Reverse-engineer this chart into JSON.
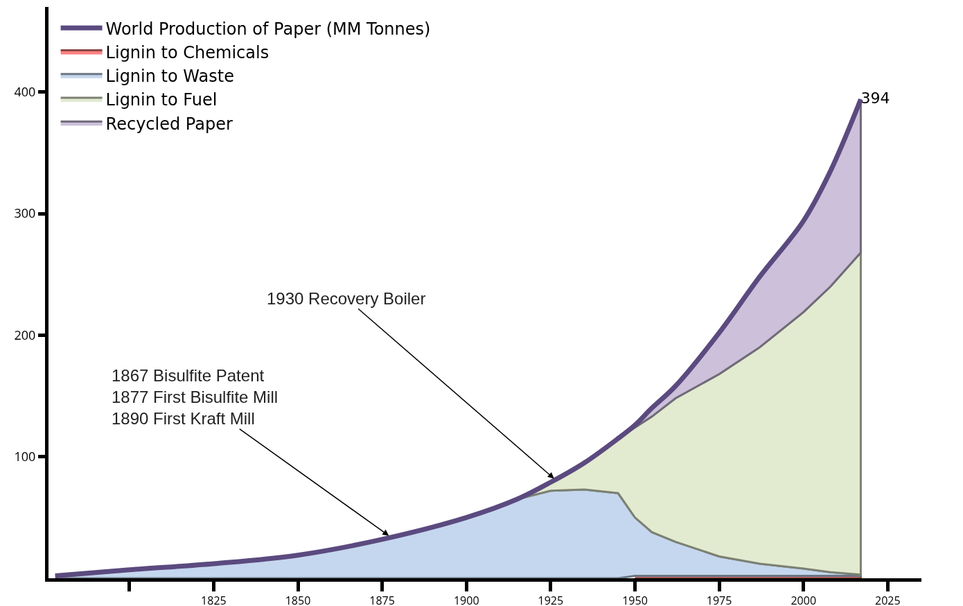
{
  "chart_data": {
    "type": "area",
    "stacked": true,
    "x": [
      1778,
      1800,
      1825,
      1850,
      1875,
      1900,
      1915,
      1925,
      1935,
      1945,
      1950,
      1955,
      1962,
      1975,
      1987,
      2000,
      2008,
      2017
    ],
    "series": [
      {
        "name": "Lignin to Chemicals",
        "color": "#ff8080",
        "values": [
          null,
          null,
          null,
          null,
          null,
          null,
          null,
          null,
          null,
          null,
          2,
          2,
          2,
          2,
          2,
          2,
          2,
          2
        ]
      },
      {
        "name": "Lignin to Waste",
        "color": "#c5d7ee",
        "values": [
          2,
          7,
          12,
          19,
          32,
          50,
          65,
          72,
          73,
          70,
          48,
          36,
          28,
          16,
          10,
          6,
          3,
          1
        ]
      },
      {
        "name": "Lignin to Fuel",
        "color": "#e2ebd0",
        "values": [
          null,
          null,
          null,
          null,
          null,
          null,
          0,
          7,
          22,
          45,
          74,
          95,
          118,
          150,
          178,
          211,
          235,
          265
        ]
      },
      {
        "name": "Recycled Paper",
        "color": "#ccc0da",
        "values": [
          null,
          null,
          null,
          null,
          null,
          null,
          null,
          null,
          null,
          0,
          2,
          7,
          10,
          34,
          58,
          75,
          95,
          126
        ]
      },
      {
        "name": "World Production of Paper (MM Tonnes)",
        "type": "line",
        "color": "#5b4a7f",
        "values": [
          2,
          7,
          12,
          19,
          32,
          50,
          65,
          79,
          95,
          115,
          126,
          140,
          158,
          202,
          248,
          294,
          335,
          394
        ],
        "value_labels": [
          null,
          null,
          null,
          null,
          null,
          null,
          null,
          null,
          null,
          null,
          null,
          null,
          null,
          null,
          null,
          null,
          null,
          "394"
        ]
      }
    ],
    "annotations": [
      {
        "text": "1867 Bisulfite Patent\n1877 First Bisulfite Mill\n1890 First Kraft Mill",
        "x": 1877,
        "y": 35
      },
      {
        "text": "1930 Recovery Boiler",
        "x": 1926,
        "y": 82
      }
    ],
    "xlim": [
      1776,
      2035
    ],
    "xticks": [
      {
        "value": 1800,
        "label": null
      },
      1825,
      1850,
      1875,
      1900,
      1925,
      1950,
      1975,
      2000,
      2025
    ],
    "ylim": [
      0,
      470
    ],
    "yticks": [
      100,
      200,
      300,
      400
    ],
    "grid": false,
    "legend": "top left",
    "marker": "none",
    "line_style": "solid"
  }
}
